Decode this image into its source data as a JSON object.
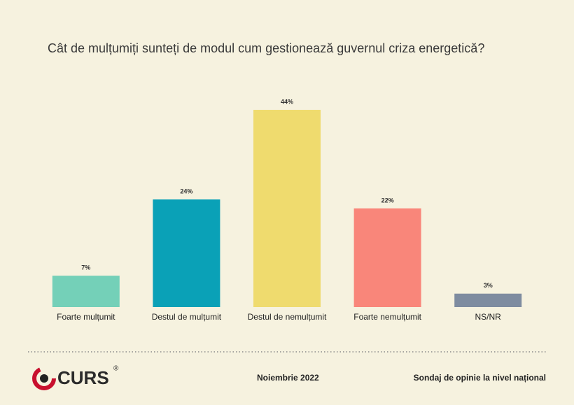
{
  "chart_data": {
    "type": "bar",
    "title": "Cât de mulțumiți sunteți de modul cum gestionează guvernul criza energetică?",
    "categories": [
      "Foarte mulțumit",
      "Destul de mulțumit",
      "Destul de nemulțumit",
      "Foarte nemulțumit",
      "NS/NR"
    ],
    "values": [
      7,
      24,
      44,
      22,
      3
    ],
    "value_labels": [
      "7%",
      "24%",
      "44%",
      "22%",
      "3%"
    ],
    "colors": [
      "#74d0b8",
      "#0aa1b7",
      "#efdb6e",
      "#f9867a",
      "#7e8ca0"
    ]
  },
  "footer": {
    "logo": "CURS",
    "logo_mark": "®",
    "date": "Noiembrie 2022",
    "note": "Sondaj de opinie la nivel național"
  }
}
